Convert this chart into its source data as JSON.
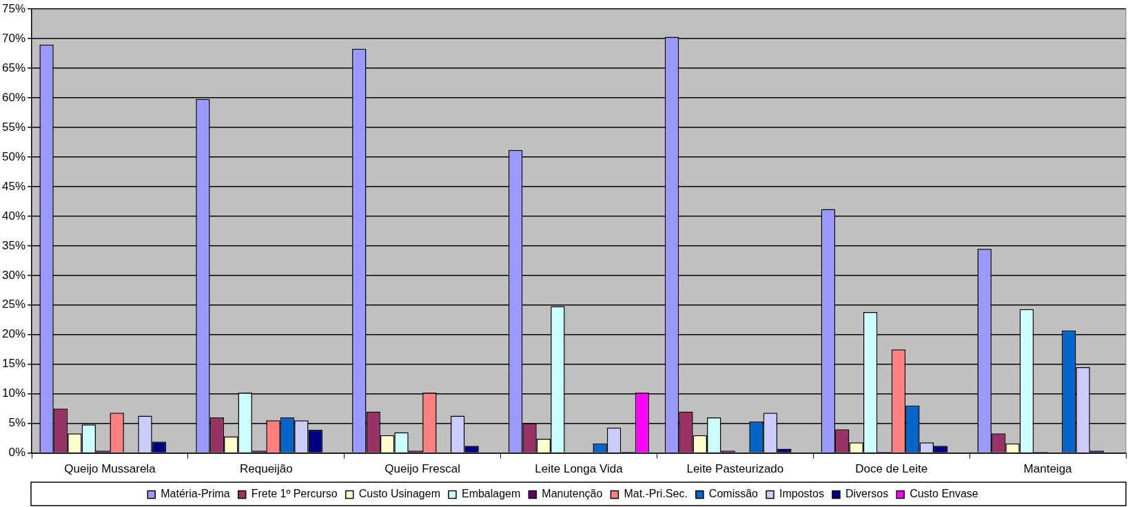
{
  "chart_data": {
    "type": "bar",
    "categories": [
      "Queijo Mussarela",
      "Requeijão",
      "Queijo Frescal",
      "Leite Longa Vida",
      "Leite Pasteurizado",
      "Doce de Leite",
      "Manteiga"
    ],
    "ylim": [
      0,
      75
    ],
    "yticks": [
      {
        "value": 0,
        "label": "0%"
      },
      {
        "value": 5,
        "label": "5%"
      },
      {
        "value": 10,
        "label": "10%"
      },
      {
        "value": 15,
        "label": "15%"
      },
      {
        "value": 20,
        "label": "20%"
      },
      {
        "value": 25,
        "label": "25%"
      },
      {
        "value": 30,
        "label": "30%"
      },
      {
        "value": 35,
        "label": "35%"
      },
      {
        "value": 40,
        "label": "40%"
      },
      {
        "value": 45,
        "label": "45%"
      },
      {
        "value": 50,
        "label": "50%"
      },
      {
        "value": 55,
        "label": "55%"
      },
      {
        "value": 60,
        "label": "60%"
      },
      {
        "value": 65,
        "label": "65%"
      },
      {
        "value": 70,
        "label": "70%"
      },
      {
        "value": 75,
        "label": "75%"
      }
    ],
    "grid": "y",
    "legend": "bottom",
    "series": [
      {
        "name": "Matéria-Prima",
        "color": "#9999ff",
        "values": [
          69,
          59.8,
          68.3,
          51.2,
          70.3,
          41.2,
          34.5
        ]
      },
      {
        "name": "Frete 1º Percurso",
        "color": "#993366",
        "values": [
          7.5,
          6.0,
          7.0,
          5.0,
          7.0,
          4.0,
          3.3
        ]
      },
      {
        "name": "Custo Usinagem",
        "color": "#ffffcc",
        "values": [
          3.3,
          2.8,
          3.0,
          2.4,
          3.0,
          1.8,
          1.6
        ]
      },
      {
        "name": "Embalagem",
        "color": "#ccffff",
        "values": [
          4.8,
          10.2,
          3.5,
          24.8,
          6.0,
          23.8,
          24.3
        ]
      },
      {
        "name": "Manutenção",
        "color": "#660066",
        "values": [
          0.4,
          0.4,
          0.4,
          null,
          0.4,
          0.2,
          0.2
        ]
      },
      {
        "name": "Mat.-Pri.Sec.",
        "color": "#ff8080",
        "values": [
          6.8,
          5.5,
          10.2,
          null,
          null,
          17.5,
          null
        ]
      },
      {
        "name": "Comissão",
        "color": "#0066cc",
        "values": [
          null,
          6.0,
          null,
          1.6,
          5.3,
          8.0,
          20.7
        ]
      },
      {
        "name": "Impostos",
        "color": "#ccccff",
        "values": [
          6.3,
          5.5,
          6.3,
          4.3,
          6.8,
          1.8,
          14.5
        ]
      },
      {
        "name": "Diversos",
        "color": "#000080",
        "values": [
          1.9,
          3.9,
          1.2,
          0.2,
          0.7,
          1.2,
          0.4
        ]
      },
      {
        "name": "Custo Envase",
        "color": "#ff00ff",
        "values": [
          null,
          null,
          null,
          10.2,
          null,
          null,
          null
        ]
      }
    ]
  }
}
